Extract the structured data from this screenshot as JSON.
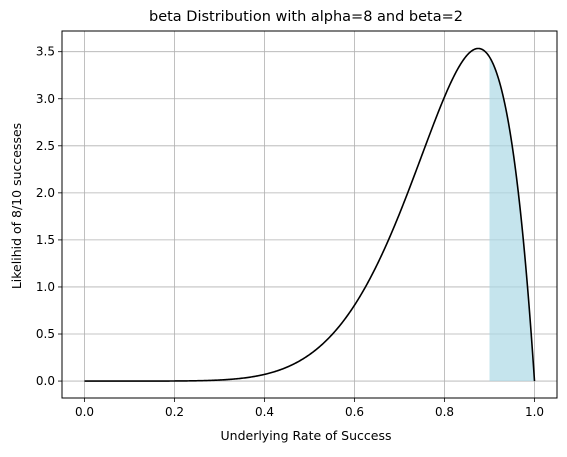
{
  "chart_data": {
    "type": "line",
    "title": "beta Distribution with alpha=8 and beta=2",
    "xlabel": "Underlying Rate of Success",
    "ylabel": "Likelihid of 8/10 successes",
    "xlim": [
      -0.05,
      1.05
    ],
    "ylim": [
      -0.18,
      3.72
    ],
    "x_ticks": [
      0.0,
      0.2,
      0.4,
      0.6,
      0.8,
      1.0
    ],
    "x_tick_labels": [
      "0.0",
      "0.2",
      "0.4",
      "0.6",
      "0.8",
      "1.0"
    ],
    "y_ticks": [
      0.0,
      0.5,
      1.0,
      1.5,
      2.0,
      2.5,
      3.0,
      3.5
    ],
    "y_tick_labels": [
      "0.0",
      "0.5",
      "1.0",
      "1.5",
      "2.0",
      "2.5",
      "3.0",
      "3.5"
    ],
    "grid": true,
    "distribution": {
      "name": "beta",
      "alpha": 8,
      "beta": 2
    },
    "series": [
      {
        "color": "#000000",
        "x": [
          0.0,
          0.1,
          0.2,
          0.3,
          0.4,
          0.5,
          0.6,
          0.7,
          0.75,
          0.8,
          0.85,
          0.875,
          0.9,
          0.95,
          1.0
        ],
        "y": [
          0.0,
          0.0,
          0.0018,
          0.0157,
          0.0786,
          0.2813,
          0.7999,
          1.9765,
          2.5,
          3.0199,
          3.4,
          3.534,
          3.4437,
          2.5,
          0.0
        ]
      }
    ],
    "shaded_region": {
      "x_from": 0.9,
      "x_to": 1.0,
      "color": "#add8e6",
      "opacity": 0.7
    }
  }
}
